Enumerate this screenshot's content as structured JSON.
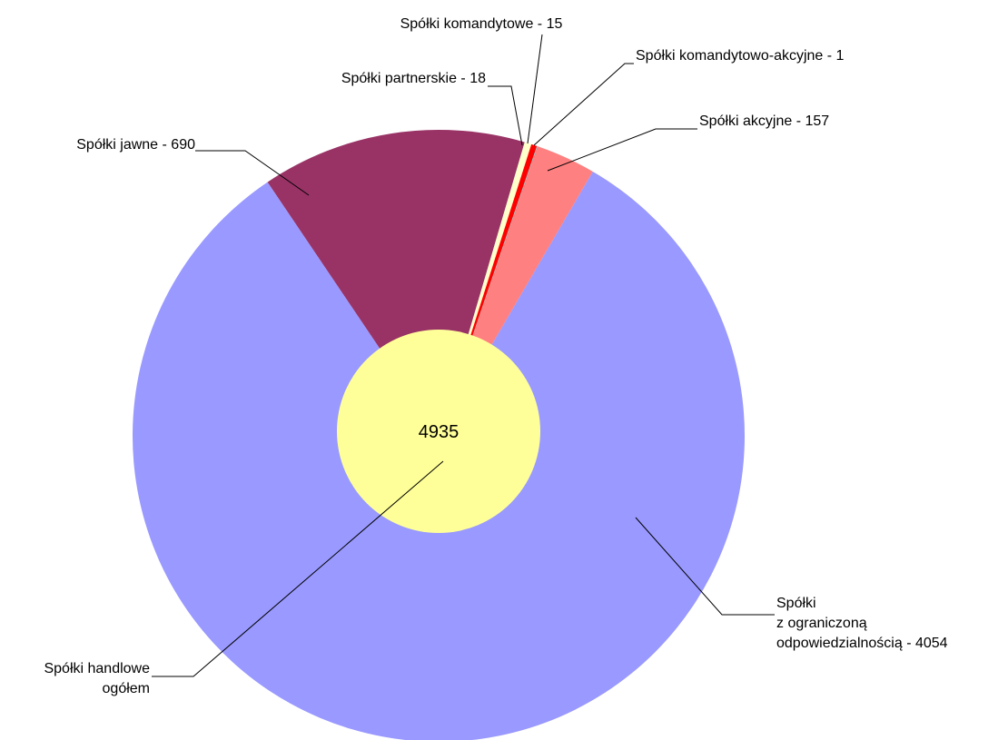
{
  "chart_data": {
    "type": "donut-pie",
    "values": [
      690,
      18,
      15,
      1,
      157,
      4054
    ],
    "value_labels": [
      "Spółki jawne - 690",
      "Spółki partnerskie - 18",
      "Spółki komandytowe - 15",
      "Spółki komandytowo-akcyjne - 1",
      "Spółki akcyjne - 157",
      "Spółki\nz ograniczoną\nodpowiedzialnością - 4054"
    ],
    "colors": [
      "#993366",
      "#ffffcc",
      "#ff0000",
      "#00ffff",
      "#ff8080",
      "#9999ff"
    ],
    "total": 4935,
    "total_label": "Spółki handlowe\nogółem",
    "total_color": "#ffff99"
  }
}
